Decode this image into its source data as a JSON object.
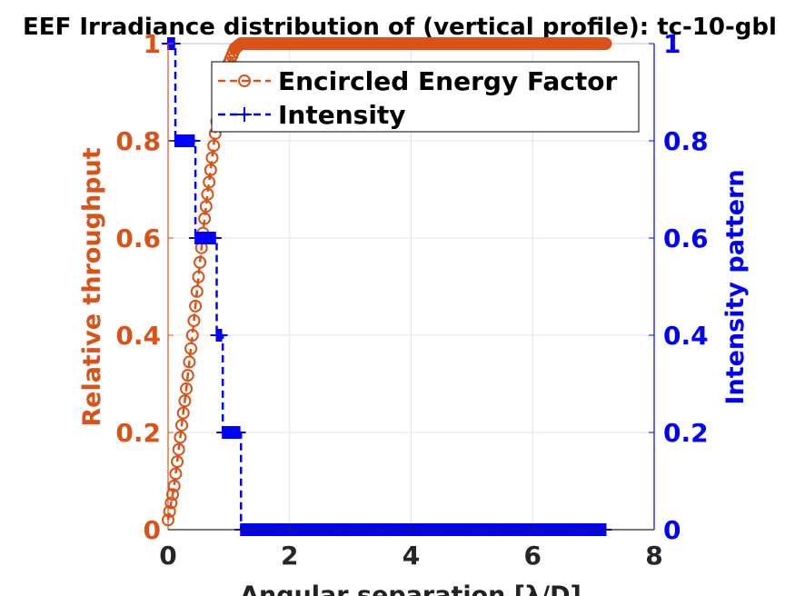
{
  "chart_data": {
    "type": "line",
    "title": "EEF Irradiance distribution of (vertical profile): tc-10-gbl",
    "xlabel": "Angular separation [λ/D]",
    "ylabel_left": "Relative throughput",
    "ylabel_right": "Intensity pattern",
    "xlim": [
      0,
      8
    ],
    "ylim_left": [
      0,
      1
    ],
    "ylim_right": [
      0,
      1
    ],
    "xticks": [
      "0",
      "2",
      "4",
      "6",
      "8"
    ],
    "yticks_left": [
      "0",
      "0.2",
      "0.4",
      "0.6",
      "0.8",
      "1"
    ],
    "yticks_right": [
      "0",
      "0.2",
      "0.4",
      "0.6",
      "0.8",
      "1"
    ],
    "grid": true,
    "legend_position": "top-right",
    "colors": {
      "eef": "#d95319",
      "intensity": "#0000ff"
    },
    "series": [
      {
        "name": "Encircled Energy Factor",
        "axis": "left",
        "marker": "circle",
        "line": "dashed",
        "x": [
          0.0,
          0.1,
          0.2,
          0.3,
          0.4,
          0.5,
          0.6,
          0.7,
          0.8,
          0.9,
          1.0,
          1.1,
          1.2,
          1.3,
          1.5,
          2.0,
          3.0,
          4.0,
          5.0,
          6.0,
          7.0,
          7.2
        ],
        "y": [
          0.02,
          0.09,
          0.19,
          0.29,
          0.4,
          0.52,
          0.64,
          0.74,
          0.84,
          0.91,
          0.96,
          0.99,
          1.0,
          1.0,
          1.0,
          1.0,
          1.0,
          1.0,
          1.0,
          1.0,
          1.0,
          1.0
        ]
      },
      {
        "name": "Intensity",
        "axis": "right",
        "marker": "plus",
        "line": "dashed",
        "x": [
          0.0,
          0.1,
          0.12,
          0.3,
          0.45,
          0.7,
          0.8,
          0.85,
          0.9,
          1.15,
          1.2,
          2.0,
          4.0,
          6.0,
          7.2
        ],
        "y": [
          1.0,
          1.0,
          0.8,
          0.8,
          0.6,
          0.6,
          0.4,
          0.4,
          0.2,
          0.2,
          0.0,
          0.0,
          0.0,
          0.0,
          0.0
        ]
      }
    ]
  }
}
